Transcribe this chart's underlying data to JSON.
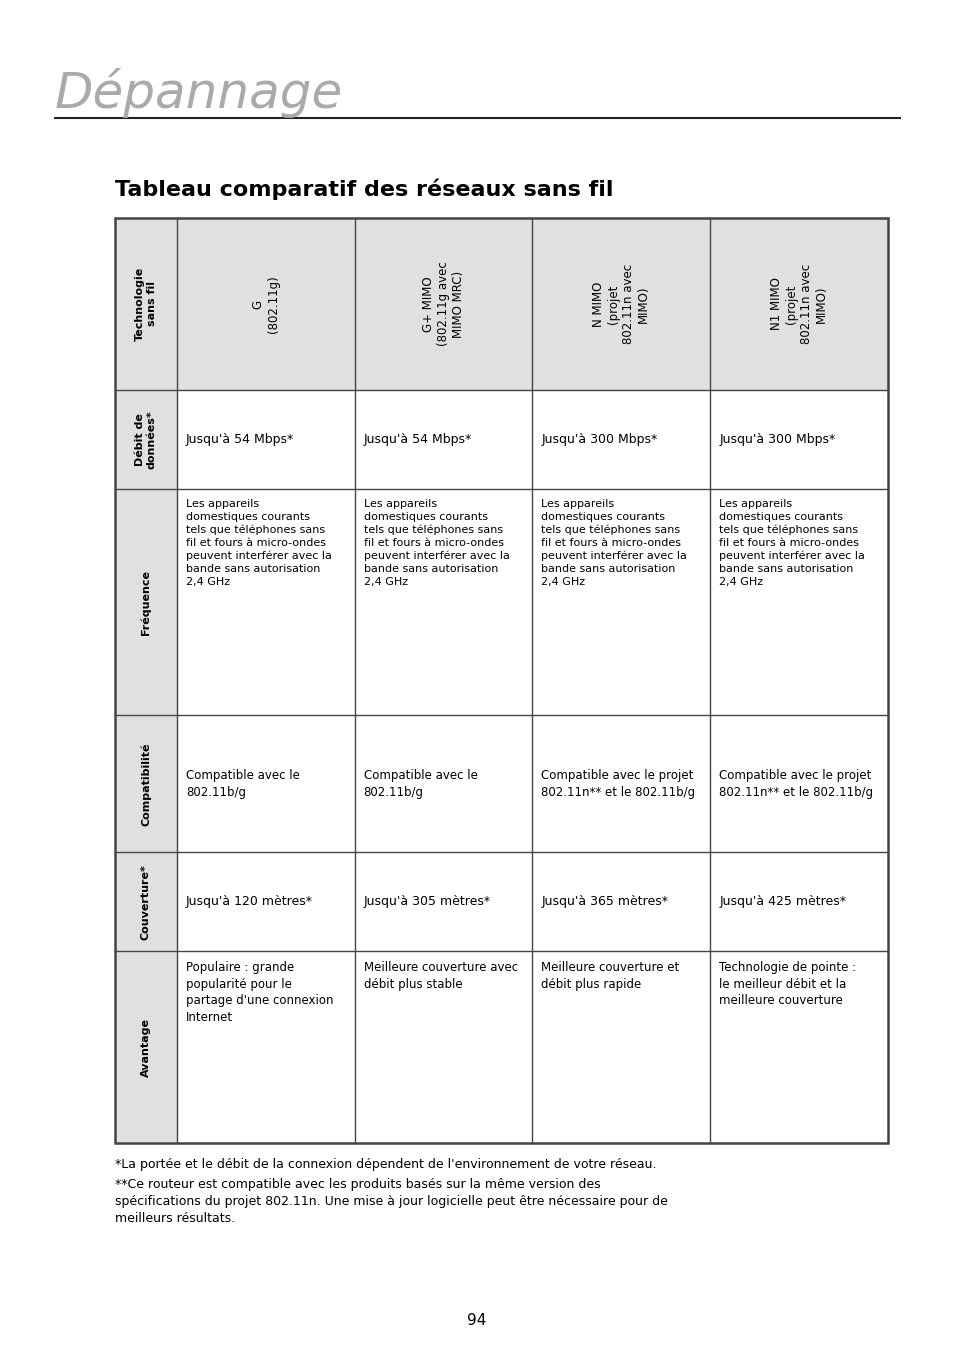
{
  "page_title": "Dépannage",
  "section_title": "Tableau comparatif des réseaux sans fil",
  "bg_color": "#ffffff",
  "title_color": "#aaaaaa",
  "section_title_color": "#000000",
  "table_bg": "#e0e0e0",
  "table_border_color": "#444444",
  "text_color": "#000000",
  "row_headers": [
    "Technologie\nsans fil",
    "Débit de\ndonnées*",
    "Fréquence",
    "Compatibilité",
    "Couverture*",
    "Avantage"
  ],
  "col_headers": [
    "G\n(802.11g)",
    "G+ MIMO\n(802.11g avec\nMIMO MRC)",
    "N MIMO\n(projet\n802.11n avec\nMIMO)",
    "N1 MIMO\n(projet\n802.11n avec\nMIMO)"
  ],
  "cells": [
    [
      "Jusqu'à 54 Mbps*",
      "Jusqu'à 54 Mbps*",
      "Jusqu'à 300 Mbps*",
      "Jusqu'à 300 Mbps*"
    ],
    [
      "Les appareils\ndomestiques courants\ntels que téléphones sans\nfil et fours à micro-ondes\npeuvent interférer avec la\nbande sans autorisation\n2,4 GHz",
      "Les appareils\ndomestiques courants\ntels que téléphones sans\nfil et fours à micro-ondes\npeuvent interférer avec la\nbande sans autorisation\n2,4 GHz",
      "Les appareils\ndomestiques courants\ntels que téléphones sans\nfil et fours à micro-ondes\npeuvent interférer avec la\nbande sans autorisation\n2,4 GHz",
      "Les appareils\ndomestiques courants\ntels que téléphones sans\nfil et fours à micro-ondes\npeuvent interférer avec la\nbande sans autorisation\n2,4 GHz"
    ],
    [
      "Compatible avec le\n802.11b/g",
      "Compatible avec le\n802.11b/g",
      "Compatible avec le projet\n802.11n** et le 802.11b/g",
      "Compatible avec le projet\n802.11n** et le 802.11b/g"
    ],
    [
      "Jusqu'à 120 mètres*",
      "Jusqu'à 305 mètres*",
      "Jusqu'à 365 mètres*",
      "Jusqu'à 425 mètres*"
    ],
    [
      "Populaire : grande\npopularité pour le\npartage d'une connexion\nInternet",
      "Meilleure couverture avec\ndébit plus stable",
      "Meilleure couverture et\ndébit plus rapide",
      "Technologie de pointe :\nle meilleur débit et la\nmeilleure couverture"
    ]
  ],
  "footnote1": "*La portée et le débit de la connexion dépendent de l'environnement de votre réseau.",
  "footnote2": "**Ce routeur est compatible avec les produits basés sur la même version des\nspécifications du projet 802.11n. Une mise à jour logicielle peut être nécessaire pour de\nmeilleurs résultats.",
  "page_number": "94"
}
